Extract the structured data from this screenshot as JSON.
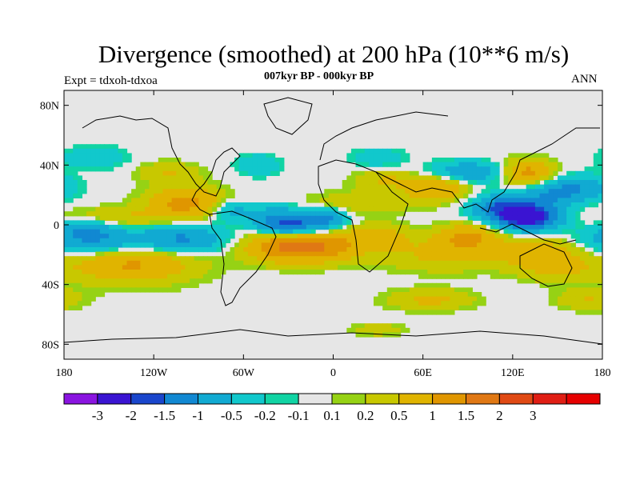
{
  "title": "Divergence (smoothed) at 200 hPa (10**6 m/s)",
  "subtitle": "007kyr BP - 000kyr BP",
  "left_label": "Expt = tdxoh-tdxoa",
  "right_label": "ANN",
  "axes": {
    "x_ticks": [
      {
        "lon": -180,
        "label": "180"
      },
      {
        "lon": -120,
        "label": "120W"
      },
      {
        "lon": -60,
        "label": "60W"
      },
      {
        "lon": 0,
        "label": "0"
      },
      {
        "lon": 60,
        "label": "60E"
      },
      {
        "lon": 120,
        "label": "120E"
      },
      {
        "lon": 180,
        "label": "180"
      }
    ],
    "y_ticks": [
      {
        "lat": 80,
        "label": "80N"
      },
      {
        "lat": 40,
        "label": "40N"
      },
      {
        "lat": 0,
        "label": "0"
      },
      {
        "lat": -40,
        "label": "40S"
      },
      {
        "lat": -80,
        "label": "80S"
      }
    ],
    "lon_range": [
      -180,
      180
    ],
    "lat_range": [
      -90,
      90
    ]
  },
  "colors": {
    "neutral": "#e6e6e6",
    "coast": "#000000"
  },
  "colorbar": {
    "colors": [
      "#8a14e0",
      "#3a14d2",
      "#1a46cc",
      "#1188d2",
      "#11aad2",
      "#11c8cc",
      "#11d4a4",
      "#e6e6e6",
      "#96d214",
      "#c8c800",
      "#e0b400",
      "#e09600",
      "#e07814",
      "#e04a14",
      "#e01e14",
      "#e60000"
    ],
    "labels": [
      "-3",
      "-2",
      "-1.5",
      "-1",
      "-0.5",
      "-0.2",
      "-0.1",
      "0.1",
      "0.2",
      "0.5",
      "1",
      "1.5",
      "2",
      "3"
    ]
  },
  "chart_data": {
    "type": "contour-map",
    "projection": "cylindrical equidistant",
    "variable": "Divergence (smoothed) at 200 hPa",
    "units": "10**6 m/s",
    "levels": [
      -3,
      -2,
      -1.5,
      -1,
      -0.5,
      -0.2,
      -0.1,
      0.1,
      0.2,
      0.5,
      1,
      1.5,
      2,
      3
    ],
    "features": [
      {
        "lon": -155,
        "lat": -12,
        "sx": 28,
        "sy": 7,
        "value": -1.2
      },
      {
        "lon": -165,
        "lat": -3,
        "sx": 12,
        "sy": 5,
        "value": -0.8
      },
      {
        "lon": -135,
        "lat": -24,
        "sx": 30,
        "sy": 10,
        "value": 1.2
      },
      {
        "lon": -140,
        "lat": 5,
        "sx": 30,
        "sy": 5,
        "value": 0.5
      },
      {
        "lon": -100,
        "lat": -10,
        "sx": 20,
        "sy": 7,
        "value": -1.1
      },
      {
        "lon": -98,
        "lat": 15,
        "sx": 18,
        "sy": 7,
        "value": 1.2
      },
      {
        "lon": -70,
        "lat": 10,
        "sx": 10,
        "sy": 5,
        "value": -0.7
      },
      {
        "lon": -40,
        "lat": 8,
        "sx": 14,
        "sy": 5,
        "value": -0.5
      },
      {
        "lon": -30,
        "lat": 0,
        "sx": 14,
        "sy": 5,
        "value": -1.6
      },
      {
        "lon": -5,
        "lat": 4,
        "sx": 10,
        "sy": 5,
        "value": -1.0
      },
      {
        "lon": -30,
        "lat": -15,
        "sx": 20,
        "sy": 7,
        "value": 1.6
      },
      {
        "lon": 0,
        "lat": -15,
        "sx": 15,
        "sy": 7,
        "value": 0.8
      },
      {
        "lon": 30,
        "lat": -8,
        "sx": 14,
        "sy": 6,
        "value": 0.8
      },
      {
        "lon": 20,
        "lat": 15,
        "sx": 25,
        "sy": 5,
        "value": 0.5
      },
      {
        "lon": 35,
        "lat": 30,
        "sx": 15,
        "sy": 5,
        "value": 0.5
      },
      {
        "lon": 70,
        "lat": 25,
        "sx": 15,
        "sy": 6,
        "value": 1.0
      },
      {
        "lon": 90,
        "lat": 35,
        "sx": 18,
        "sy": 5,
        "value": -1.0
      },
      {
        "lon": 112,
        "lat": 12,
        "sx": 14,
        "sy": 6,
        "value": -1.2
      },
      {
        "lon": 130,
        "lat": 5,
        "sx": 15,
        "sy": 6,
        "value": -2.4
      },
      {
        "lon": 145,
        "lat": 20,
        "sx": 15,
        "sy": 6,
        "value": -0.8
      },
      {
        "lon": 165,
        "lat": 25,
        "sx": 15,
        "sy": 6,
        "value": -0.8
      },
      {
        "lon": 130,
        "lat": 35,
        "sx": 12,
        "sy": 6,
        "value": 1.2
      },
      {
        "lon": 75,
        "lat": -20,
        "sx": 30,
        "sy": 8,
        "value": 0.6
      },
      {
        "lon": 90,
        "lat": -8,
        "sx": 15,
        "sy": 6,
        "value": 1.0
      },
      {
        "lon": 140,
        "lat": -18,
        "sx": 20,
        "sy": 7,
        "value": 0.8
      },
      {
        "lon": 150,
        "lat": -30,
        "sx": 18,
        "sy": 6,
        "value": 0.5
      },
      {
        "lon": -160,
        "lat": 45,
        "sx": 15,
        "sy": 5,
        "value": -0.5
      },
      {
        "lon": -110,
        "lat": 35,
        "sx": 15,
        "sy": 5,
        "value": 0.5
      },
      {
        "lon": -50,
        "lat": 40,
        "sx": 10,
        "sy": 5,
        "value": -0.5
      },
      {
        "lon": 30,
        "lat": 45,
        "sx": 12,
        "sy": 4,
        "value": -0.5
      },
      {
        "lon": 65,
        "lat": -50,
        "sx": 20,
        "sy": 5,
        "value": 0.6
      },
      {
        "lon": 30,
        "lat": -70,
        "sx": 12,
        "sy": 3,
        "value": 0.4
      },
      {
        "lon": 170,
        "lat": -50,
        "sx": 15,
        "sy": 5,
        "value": 0.5
      }
    ]
  }
}
